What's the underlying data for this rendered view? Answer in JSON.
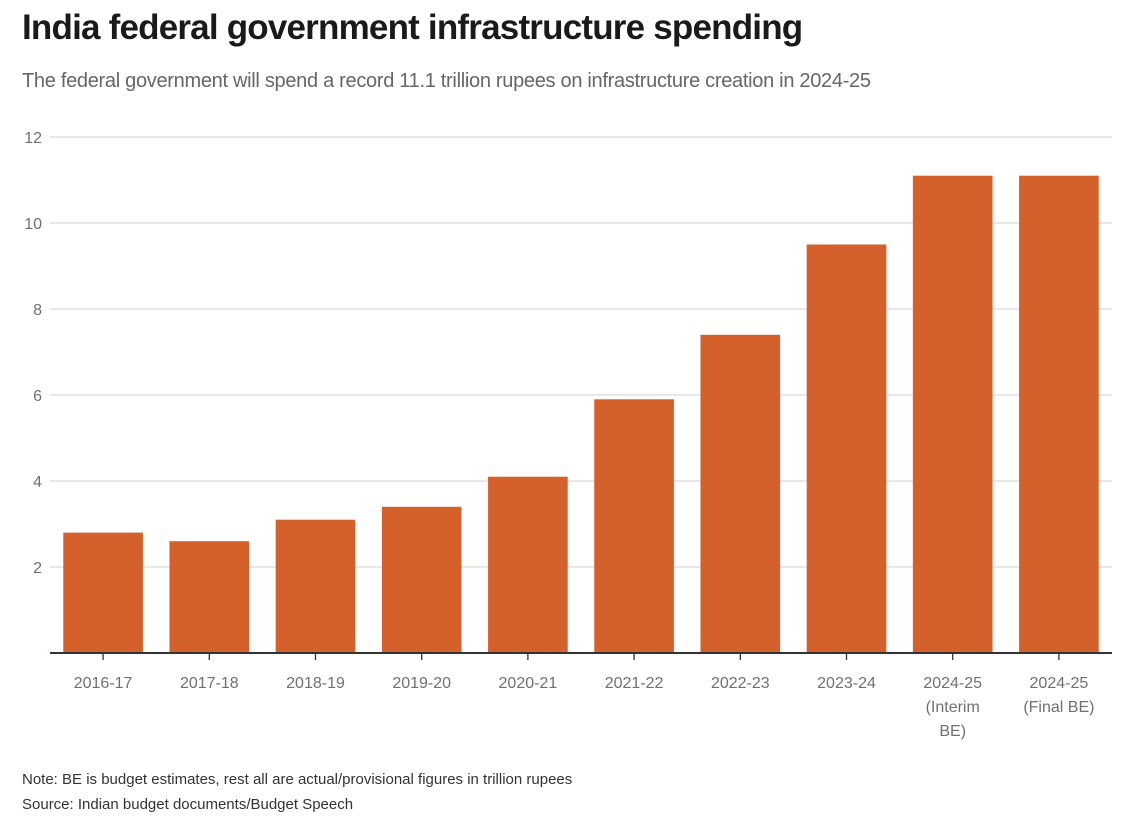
{
  "header": {
    "title": "India federal government infrastructure spending",
    "subtitle": "The federal government will spend a record 11.1 trillion rupees on infrastructure creation in 2024-25"
  },
  "footer": {
    "note": "Note: BE is budget estimates, rest all are actual/provisional figures in trillion rupees",
    "source": "Source: Indian budget documents/Budget Speech"
  },
  "colors": {
    "bar": "#d4602b",
    "grid": "#d9d9d9",
    "axis": "#333333",
    "tick_text": "#707070"
  },
  "chart_data": {
    "type": "bar",
    "title": "India federal government infrastructure spending",
    "subtitle": "The federal government will spend a record 11.1 trillion rupees on infrastructure creation in 2024-25",
    "xlabel": "",
    "ylabel": "",
    "unit": "trillion rupees",
    "categories": [
      [
        "2016-17"
      ],
      [
        "2017-18"
      ],
      [
        "2018-19"
      ],
      [
        "2019-20"
      ],
      [
        "2020-21"
      ],
      [
        "2021-22"
      ],
      [
        "2022-23"
      ],
      [
        "2023-24"
      ],
      [
        "2024-25",
        "(Interim",
        "BE)"
      ],
      [
        "2024-25",
        "(Final BE)"
      ]
    ],
    "values": [
      2.8,
      2.6,
      3.1,
      3.4,
      4.1,
      5.9,
      7.4,
      9.5,
      11.1,
      11.1
    ],
    "ylim": [
      0,
      12
    ],
    "yticks": [
      2,
      4,
      6,
      8,
      10,
      12
    ],
    "grid": true,
    "legend": "none"
  }
}
